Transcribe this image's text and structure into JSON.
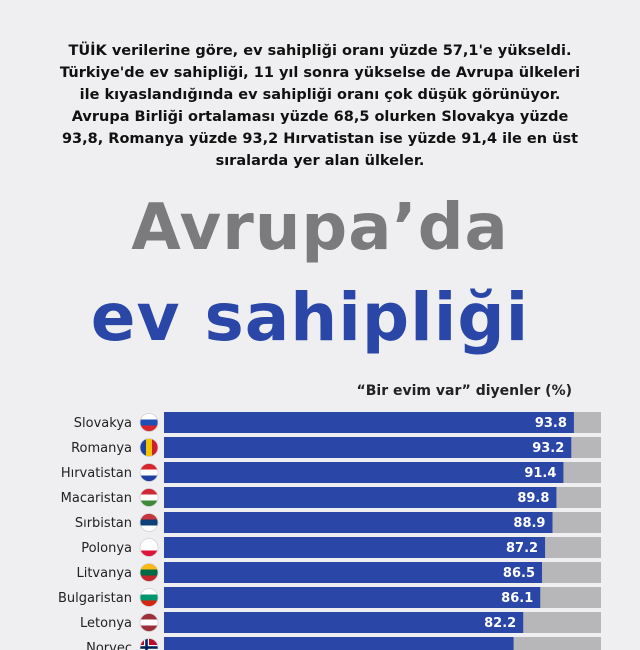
{
  "intro_text": "TÜİK verilerine göre, ev sahipliği oranı yüzde 57,1'e yükseldi. Türkiye'de ev sahipliği, 11 yıl sonra yükselse de Avrupa ülkeleri ile kıyaslandığında ev sahipliği oranı çok düşük görünüyor. Avrupa Birliği ortalaması yüzde 68,5 olurken Slovakya yüzde 93,8, Romanya yüzde 93,2 Hırvatistan ise yüzde 91,4 ile en üst sıralarda yer alan ülkeler.",
  "title_line1": "Avrupa’da",
  "title_line2": "ev sahipliği",
  "colors": {
    "background": "#efeff1",
    "bar": "#2a47a7",
    "track": "#b7b7b9",
    "title_gray": "#7b7b7d",
    "title_blue": "#2a47a7"
  },
  "chart_data": {
    "type": "bar",
    "orientation": "horizontal",
    "title": "“Bir evim var” diyenler (%)",
    "categories": [
      "Slovakya",
      "Romanya",
      "Hırvatistan",
      "Macaristan",
      "Sırbistan",
      "Polonya",
      "Litvanya",
      "Bulgaristan",
      "Letonya",
      "Norveç"
    ],
    "values": [
      93.8,
      93.2,
      91.4,
      89.8,
      88.9,
      87.2,
      86.5,
      86.1,
      82.2,
      80.0
    ],
    "value_labels": [
      "93.8",
      "93.2",
      "91.4",
      "89.8",
      "88.9",
      "87.2",
      "86.5",
      "86.1",
      "82.2",
      ""
    ],
    "flag_icons": [
      "flag-slovakia-icon",
      "flag-romania-icon",
      "flag-croatia-icon",
      "flag-hungary-icon",
      "flag-serbia-icon",
      "flag-poland-icon",
      "flag-lithuania-icon",
      "flag-bulgaria-icon",
      "flag-latvia-icon",
      "flag-norway-icon"
    ],
    "xlim": [
      0,
      100
    ],
    "grid": false,
    "legend": "none"
  }
}
